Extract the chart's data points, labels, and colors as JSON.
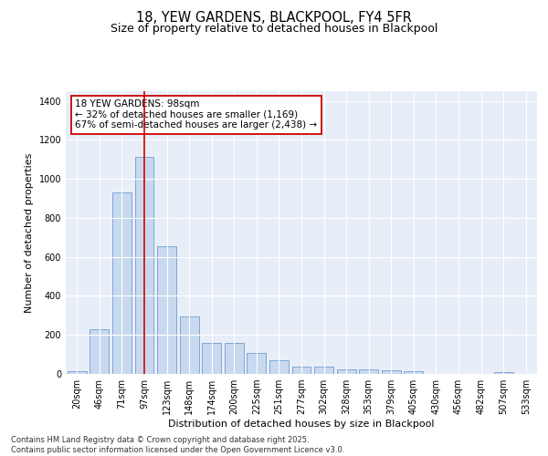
{
  "title": "18, YEW GARDENS, BLACKPOOL, FY4 5FR",
  "subtitle": "Size of property relative to detached houses in Blackpool",
  "xlabel": "Distribution of detached houses by size in Blackpool",
  "ylabel": "Number of detached properties",
  "categories": [
    "20sqm",
    "46sqm",
    "71sqm",
    "97sqm",
    "123sqm",
    "148sqm",
    "174sqm",
    "200sqm",
    "225sqm",
    "251sqm",
    "277sqm",
    "302sqm",
    "328sqm",
    "353sqm",
    "379sqm",
    "405sqm",
    "430sqm",
    "456sqm",
    "482sqm",
    "507sqm",
    "533sqm"
  ],
  "values": [
    15,
    228,
    930,
    1115,
    655,
    295,
    160,
    157,
    108,
    70,
    37,
    37,
    22,
    22,
    20,
    13,
    0,
    0,
    0,
    8,
    0
  ],
  "bar_color": "#c8d9ef",
  "bar_edge_color": "#5b8dc8",
  "vline_x_index": 3,
  "vline_color": "#cc0000",
  "annotation_text": "18 YEW GARDENS: 98sqm\n← 32% of detached houses are smaller (1,169)\n67% of semi-detached houses are larger (2,438) →",
  "annotation_box_color": "#ffffff",
  "annotation_box_edge": "#cc0000",
  "background_color": "#e8eef8",
  "footer": "Contains HM Land Registry data © Crown copyright and database right 2025.\nContains public sector information licensed under the Open Government Licence v3.0.",
  "ylim": [
    0,
    1450
  ],
  "yticks": [
    0,
    200,
    400,
    600,
    800,
    1000,
    1200,
    1400
  ],
  "title_fontsize": 10.5,
  "subtitle_fontsize": 9,
  "axis_label_fontsize": 8,
  "tick_fontsize": 7,
  "footer_fontsize": 6,
  "annotation_fontsize": 7.5
}
